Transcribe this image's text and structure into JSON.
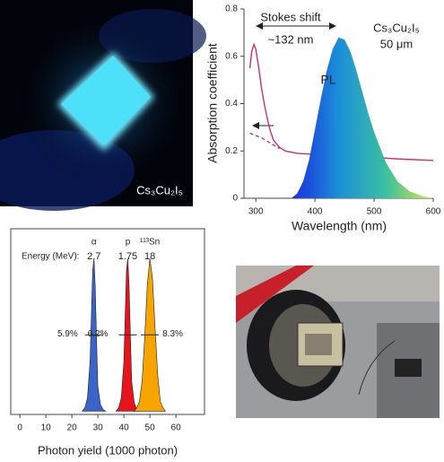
{
  "photos": [
    {
      "label": "Cs₃Cu₂I₅"
    }
  ],
  "chart_data": [
    {
      "type": "line",
      "ylabel": "Absorption coefficient",
      "xlabel": "Wavelength (nm)",
      "annotations": [
        "Stokes shift",
        "~132 nm",
        "Cs₃Cu₂I₅",
        "50 μm"
      ],
      "xlim": [
        280,
        600
      ],
      "xticks": [
        300,
        400,
        500,
        600
      ],
      "ylim": [
        0,
        0.8
      ],
      "yticks": [
        0,
        0.2,
        0.4,
        0.6,
        0.8
      ],
      "series": [
        {
          "color": "#c8307c",
          "x": [
            290,
            293,
            297,
            300,
            305,
            310,
            315,
            320,
            325,
            330,
            340,
            350,
            370,
            400,
            450,
            500,
            550,
            600
          ],
          "values": [
            0.55,
            0.62,
            0.65,
            0.63,
            0.55,
            0.46,
            0.39,
            0.33,
            0.28,
            0.245,
            0.215,
            0.2,
            0.19,
            0.185,
            0.178,
            0.172,
            0.165,
            0.16
          ]
        },
        {
          "color": "#c8307c",
          "dashed": true,
          "x": [
            290,
            300,
            310,
            320,
            330,
            340
          ],
          "values": [
            0.275,
            0.265,
            0.255,
            0.24,
            0.225,
            0.21
          ]
        },
        {
          "name": "PL",
          "gradient": [
            "#1e2ce0",
            "#1a8fd8",
            "#3cc0a0",
            "#d8e840"
          ],
          "x": [
            360,
            370,
            380,
            390,
            400,
            410,
            420,
            430,
            440,
            450,
            460,
            470,
            480,
            490,
            500,
            520,
            540,
            560,
            580,
            600
          ],
          "values": [
            0,
            0.02,
            0.07,
            0.16,
            0.29,
            0.42,
            0.54,
            0.63,
            0.68,
            0.67,
            0.62,
            0.54,
            0.45,
            0.36,
            0.28,
            0.15,
            0.07,
            0.03,
            0.01,
            0
          ]
        }
      ]
    },
    {
      "type": "area",
      "xlabel": "Photon yield (1000 photon)",
      "energy_label": "Energy (MeV):",
      "xlim": [
        -3.5,
        71
      ],
      "xticks": [
        0,
        10,
        20,
        30,
        40,
        50,
        60
      ],
      "ylim": [
        -0.02,
        1.1
      ],
      "series": [
        {
          "name": "α",
          "energy": 2.7,
          "resolution_label": "5.9%",
          "color": "#3a64c8",
          "x": [
            24,
            25,
            26,
            27,
            27.5,
            28,
            28.5,
            29,
            29.5,
            30,
            31,
            32,
            33
          ],
          "values": [
            0,
            0.02,
            0.08,
            0.3,
            0.58,
            0.85,
            0.92,
            0.75,
            0.42,
            0.15,
            0.04,
            0.01,
            0
          ]
        },
        {
          "name": "p",
          "energy": 1.75,
          "resolution_label": "6.2%",
          "color": "#e8141c",
          "x": [
            37,
            38,
            39,
            40,
            40.5,
            41,
            41.5,
            42,
            42.5,
            43,
            44,
            45,
            46
          ],
          "values": [
            0,
            0.02,
            0.08,
            0.3,
            0.58,
            0.85,
            0.92,
            0.76,
            0.45,
            0.18,
            0.05,
            0.01,
            0
          ]
        },
        {
          "name": "¹¹³Sn",
          "energy": 18,
          "resolution_label": "8.3%",
          "color": "#f8a400",
          "x": [
            44,
            45,
            46,
            47,
            48,
            49,
            50,
            51,
            52,
            53,
            54,
            55,
            56
          ],
          "values": [
            0,
            0.02,
            0.06,
            0.18,
            0.44,
            0.76,
            0.92,
            0.8,
            0.5,
            0.22,
            0.06,
            0.02,
            0
          ]
        }
      ]
    }
  ]
}
